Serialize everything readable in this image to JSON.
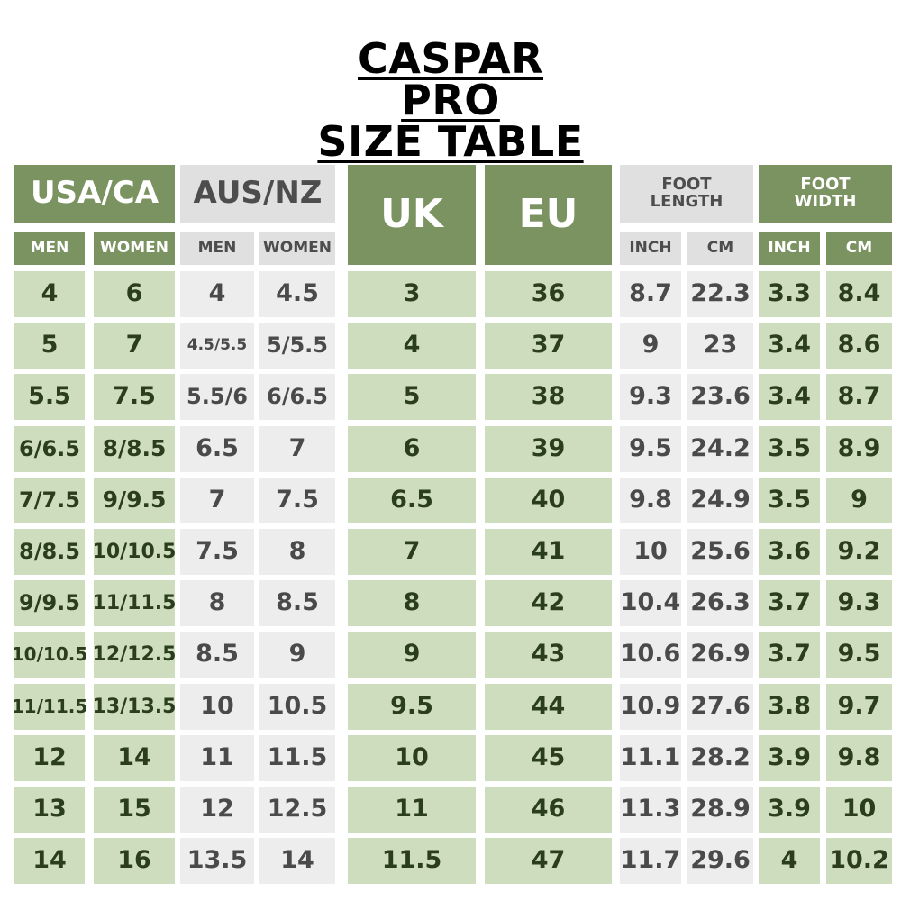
{
  "title": {
    "line1": "CASPAR PRO",
    "line2": "SIZE TABLE"
  },
  "headers": {
    "usa_ca": "USA/CA",
    "aus_nz": "AUS/NZ",
    "uk": "UK",
    "eu": "EU",
    "foot_length": "FOOT\nLENGTH",
    "foot_width": "FOOT\nWIDTH",
    "men": "MEN",
    "women": "WOMEN",
    "inch": "INCH",
    "cm": "CM"
  },
  "colors": {
    "header_green": "#7b9361",
    "header_gray": "#e0e0e0",
    "cell_green": "#cfddbf",
    "cell_gray": "#ededed"
  },
  "rows": [
    [
      "4",
      "6",
      "4",
      "4.5",
      "3",
      "36",
      "8.7",
      "22.3",
      "3.3",
      "8.4"
    ],
    [
      "5",
      "7",
      "4.5/5.5",
      "5/5.5",
      "4",
      "37",
      "9",
      "23",
      "3.4",
      "8.6"
    ],
    [
      "5.5",
      "7.5",
      "5.5/6",
      "6/6.5",
      "5",
      "38",
      "9.3",
      "23.6",
      "3.4",
      "8.7"
    ],
    [
      "6/6.5",
      "8/8.5",
      "6.5",
      "7",
      "6",
      "39",
      "9.5",
      "24.2",
      "3.5",
      "8.9"
    ],
    [
      "7/7.5",
      "9/9.5",
      "7",
      "7.5",
      "6.5",
      "40",
      "9.8",
      "24.9",
      "3.5",
      "9"
    ],
    [
      "8/8.5",
      "10/10.5",
      "7.5",
      "8",
      "7",
      "41",
      "10",
      "25.6",
      "3.6",
      "9.2"
    ],
    [
      "9/9.5",
      "11/11.5",
      "8",
      "8.5",
      "8",
      "42",
      "10.4",
      "26.3",
      "3.7",
      "9.3"
    ],
    [
      "10/10.5",
      "12/12.5",
      "8.5",
      "9",
      "9",
      "43",
      "10.6",
      "26.9",
      "3.7",
      "9.5"
    ],
    [
      "11/11.5",
      "13/13.5",
      "10",
      "10.5",
      "9.5",
      "44",
      "10.9",
      "27.6",
      "3.8",
      "9.7"
    ],
    [
      "12",
      "14",
      "11",
      "11.5",
      "10",
      "45",
      "11.1",
      "28.2",
      "3.9",
      "9.8"
    ],
    [
      "13",
      "15",
      "12",
      "12.5",
      "11",
      "46",
      "11.3",
      "28.9",
      "3.9",
      "10"
    ],
    [
      "14",
      "16",
      "13.5",
      "14",
      "11.5",
      "47",
      "11.7",
      "29.6",
      "4",
      "10.2"
    ]
  ]
}
